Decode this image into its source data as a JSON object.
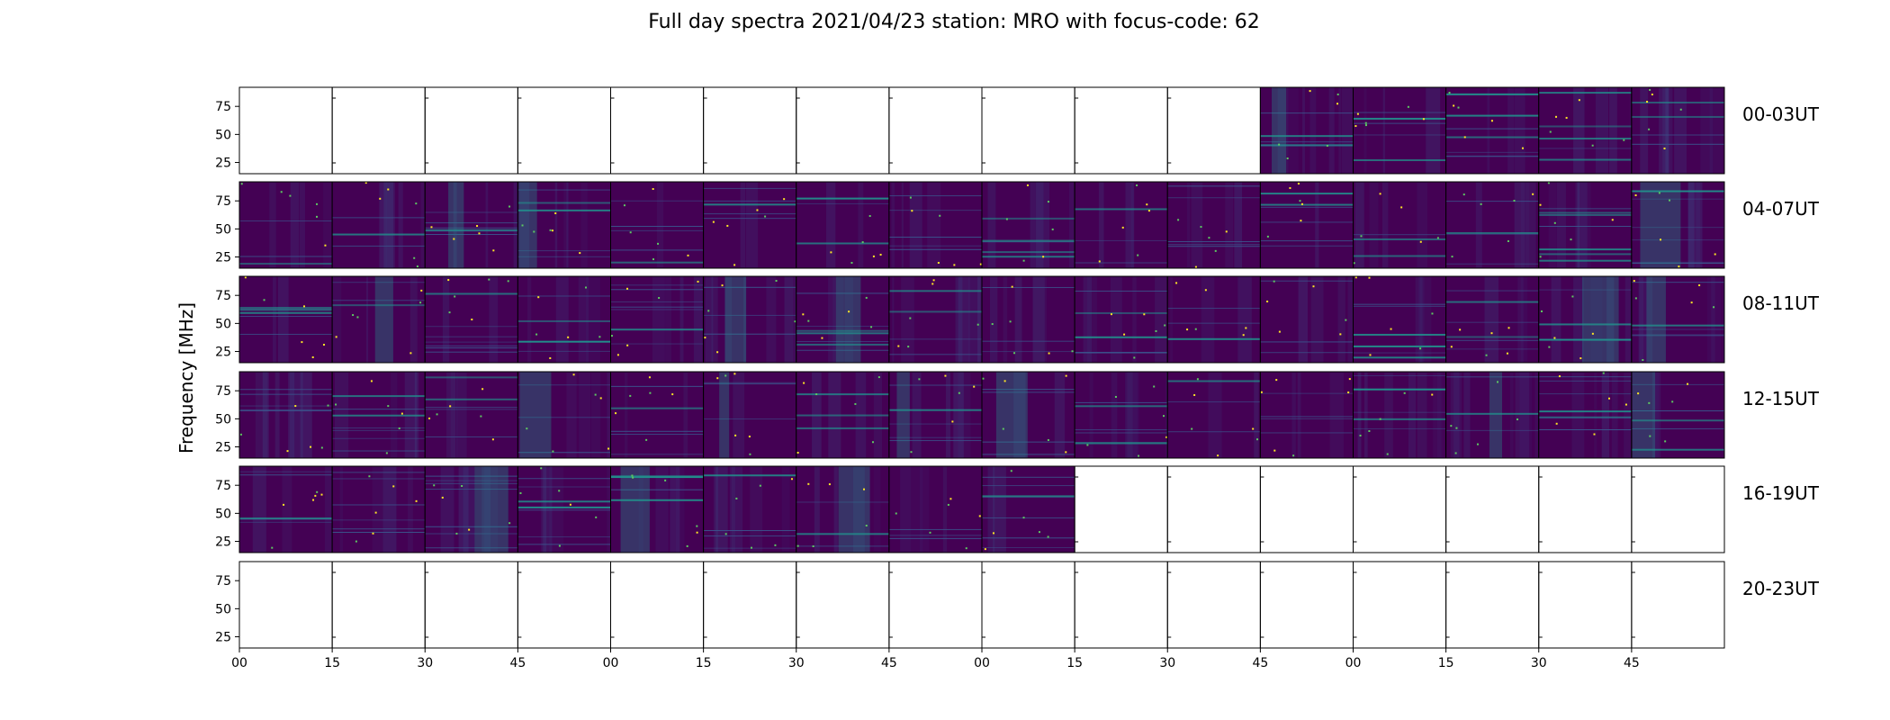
{
  "chart_data": {
    "type": "heatmap",
    "title": "Full day spectra 2021/04/23 station: MRO with focus-code: 62",
    "ylabel": "Frequency [MHz]",
    "xlabel": "",
    "ylim": [
      15,
      92
    ],
    "y_ticks": [
      25,
      50,
      75
    ],
    "x_ticks": [
      "00",
      "15",
      "30",
      "45",
      "00",
      "15",
      "30",
      "45",
      "00",
      "15",
      "30",
      "45",
      "00",
      "15",
      "30",
      "45"
    ],
    "panels_per_row": 16,
    "minutes_per_panel": 15,
    "colormap": [
      "#440154",
      "#3b528b",
      "#21918c",
      "#5ec962",
      "#fde725"
    ],
    "rows": [
      {
        "label": "00-03UT",
        "data_start_panel": 11,
        "data_end_panel": 16
      },
      {
        "label": "04-07UT",
        "data_start_panel": 0,
        "data_end_panel": 16
      },
      {
        "label": "08-11UT",
        "data_start_panel": 0,
        "data_end_panel": 16
      },
      {
        "label": "12-15UT",
        "data_start_panel": 0,
        "data_end_panel": 16
      },
      {
        "label": "16-19UT",
        "data_start_panel": 0,
        "data_end_panel": 9
      },
      {
        "label": "20-23UT",
        "data_start_panel": 0,
        "data_end_panel": 0
      }
    ]
  }
}
